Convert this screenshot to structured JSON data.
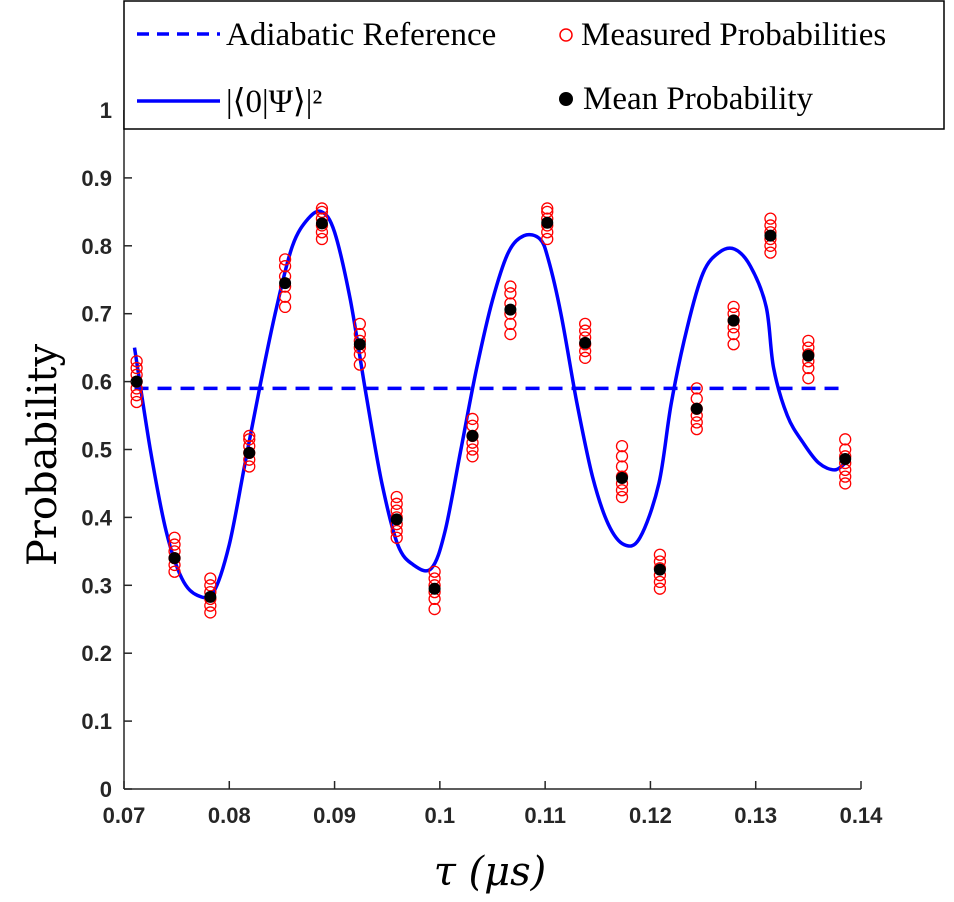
{
  "chart_data": {
    "type": "line",
    "xlabel": "τ (μs)",
    "ylabel": "Probability",
    "xlim": [
      0.07,
      0.14
    ],
    "ylim": [
      0,
      1
    ],
    "x_ticks": [
      0.07,
      0.08,
      0.09,
      0.1,
      0.11,
      0.12,
      0.13,
      0.14
    ],
    "x_tick_labels": [
      "0.07",
      "0.08",
      "0.09",
      "0.1",
      "0.11",
      "0.12",
      "0.13",
      "0.14"
    ],
    "y_ticks": [
      0,
      0.1,
      0.2,
      0.3,
      0.4,
      0.5,
      0.6,
      0.7,
      0.8,
      0.9,
      1
    ],
    "y_tick_labels": [
      "0",
      "0.1",
      "0.2",
      "0.3",
      "0.4",
      "0.5",
      "0.6",
      "0.7",
      "0.8",
      "0.9",
      "1"
    ],
    "legend": {
      "position": "top",
      "entries": [
        {
          "label": "Adiabatic Reference",
          "style": "dashed-line",
          "color": "#0000ff"
        },
        {
          "label": "Measured Probabilities",
          "style": "open-circle",
          "color": "#ff0000"
        },
        {
          "label": "|⟨0|Ψ⟩|²",
          "style": "solid-line",
          "color": "#0000ff"
        },
        {
          "label": "Mean Probability",
          "style": "filled-circle",
          "color": "#000000"
        }
      ]
    },
    "adiabatic_reference": {
      "name": "Adiabatic Reference",
      "y": 0.59,
      "x_range": [
        0.071,
        0.1385
      ],
      "color": "#0000ff"
    },
    "theory_curve": {
      "name": "|⟨0|Ψ⟩|²",
      "color": "#0000ff",
      "x": [
        0.071,
        0.0725,
        0.074,
        0.0755,
        0.077,
        0.0785,
        0.08,
        0.0815,
        0.083,
        0.0845,
        0.086,
        0.0875,
        0.0888,
        0.09,
        0.0915,
        0.093,
        0.0945,
        0.096,
        0.0975,
        0.0992,
        0.1005,
        0.102,
        0.1035,
        0.105,
        0.1065,
        0.108,
        0.1095,
        0.1103,
        0.1115,
        0.113,
        0.1145,
        0.116,
        0.1175,
        0.119,
        0.1208,
        0.122,
        0.1235,
        0.125,
        0.1265,
        0.128,
        0.1295,
        0.131,
        0.1317,
        0.133,
        0.1345,
        0.136,
        0.1375,
        0.1385
      ],
      "y": [
        0.65,
        0.5,
        0.38,
        0.31,
        0.285,
        0.29,
        0.36,
        0.48,
        0.6,
        0.71,
        0.8,
        0.84,
        0.85,
        0.82,
        0.72,
        0.58,
        0.45,
        0.36,
        0.33,
        0.325,
        0.38,
        0.5,
        0.62,
        0.72,
        0.79,
        0.815,
        0.81,
        0.78,
        0.7,
        0.57,
        0.46,
        0.39,
        0.36,
        0.37,
        0.45,
        0.57,
        0.68,
        0.76,
        0.79,
        0.795,
        0.77,
        0.71,
        0.62,
        0.55,
        0.51,
        0.48,
        0.47,
        0.48
      ]
    },
    "mean_probability": {
      "name": "Mean Probability",
      "color": "#000000",
      "x": [
        0.0712,
        0.0748,
        0.0782,
        0.0819,
        0.0853,
        0.0888,
        0.0924,
        0.0959,
        0.0995,
        0.1031,
        0.1067,
        0.1102,
        0.1138,
        0.1173,
        0.1209,
        0.1244,
        0.1279,
        0.1314,
        0.135,
        0.1385
      ],
      "y": [
        0.6,
        0.34,
        0.283,
        0.495,
        0.745,
        0.833,
        0.655,
        0.397,
        0.295,
        0.52,
        0.706,
        0.834,
        0.657,
        0.458,
        0.323,
        0.56,
        0.69,
        0.815,
        0.638,
        0.486
      ]
    },
    "measured_probabilities": {
      "name": "Measured Probabilities",
      "color": "#ff0000",
      "x": [
        0.0712,
        0.0748,
        0.0782,
        0.0819,
        0.0853,
        0.0888,
        0.0924,
        0.0959,
        0.0995,
        0.1031,
        0.1067,
        0.1102,
        0.1138,
        0.1173,
        0.1209,
        0.1244,
        0.1279,
        0.1314,
        0.135,
        0.1385
      ],
      "y_samples": [
        [
          0.57,
          0.58,
          0.59,
          0.6,
          0.61,
          0.62,
          0.63
        ],
        [
          0.32,
          0.33,
          0.34,
          0.35,
          0.36,
          0.37
        ],
        [
          0.26,
          0.27,
          0.28,
          0.29,
          0.3,
          0.31
        ],
        [
          0.475,
          0.485,
          0.495,
          0.505,
          0.515,
          0.52
        ],
        [
          0.71,
          0.725,
          0.74,
          0.755,
          0.77,
          0.78
        ],
        [
          0.81,
          0.82,
          0.83,
          0.84,
          0.85,
          0.855
        ],
        [
          0.625,
          0.64,
          0.65,
          0.66,
          0.67,
          0.685
        ],
        [
          0.37,
          0.38,
          0.39,
          0.4,
          0.41,
          0.42,
          0.43
        ],
        [
          0.265,
          0.28,
          0.29,
          0.3,
          0.31,
          0.32
        ],
        [
          0.49,
          0.5,
          0.51,
          0.52,
          0.535,
          0.545
        ],
        [
          0.67,
          0.685,
          0.7,
          0.715,
          0.73,
          0.74
        ],
        [
          0.81,
          0.82,
          0.83,
          0.84,
          0.85,
          0.855
        ],
        [
          0.635,
          0.645,
          0.655,
          0.665,
          0.675,
          0.685
        ],
        [
          0.43,
          0.44,
          0.45,
          0.46,
          0.475,
          0.49,
          0.505
        ],
        [
          0.295,
          0.305,
          0.315,
          0.325,
          0.335,
          0.345
        ],
        [
          0.53,
          0.54,
          0.55,
          0.56,
          0.575,
          0.59
        ],
        [
          0.655,
          0.67,
          0.68,
          0.69,
          0.7,
          0.71
        ],
        [
          0.79,
          0.8,
          0.81,
          0.82,
          0.83,
          0.84
        ],
        [
          0.605,
          0.62,
          0.63,
          0.64,
          0.65,
          0.66
        ],
        [
          0.45,
          0.46,
          0.47,
          0.48,
          0.49,
          0.5,
          0.515
        ]
      ]
    }
  }
}
